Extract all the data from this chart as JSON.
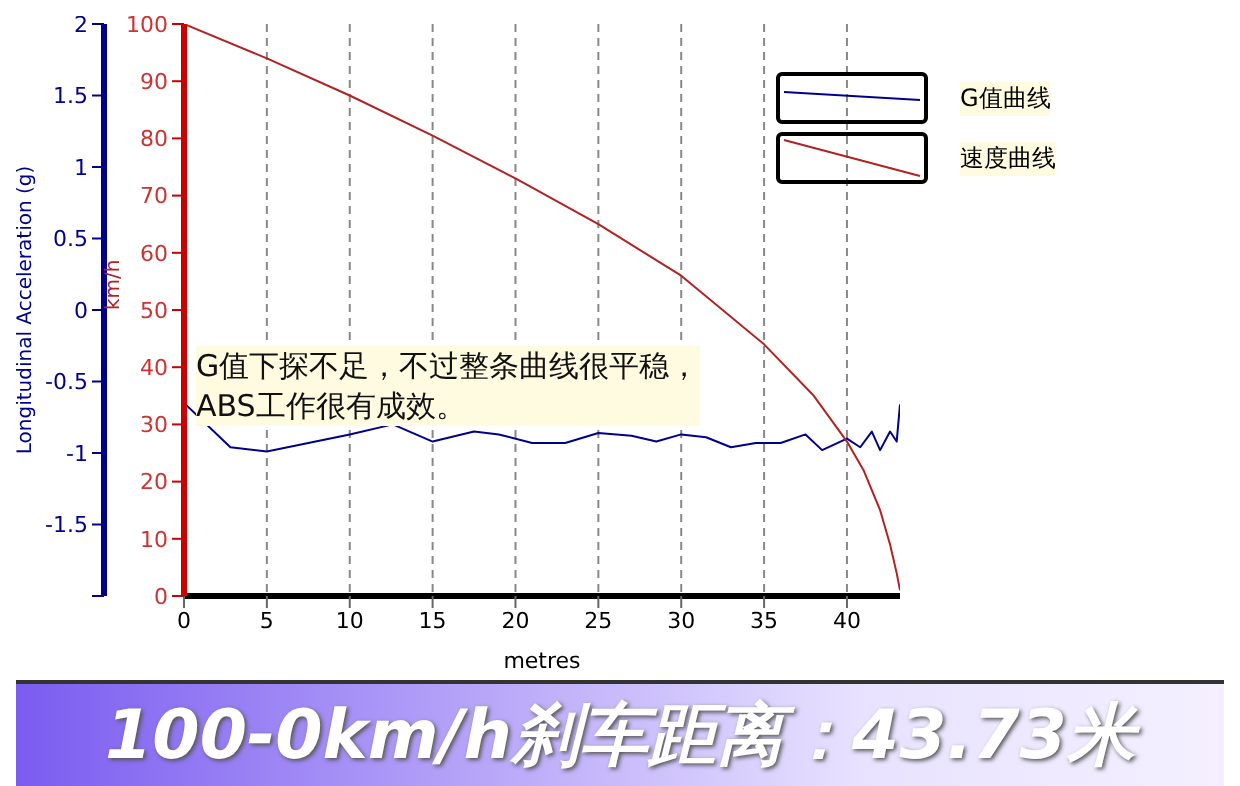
{
  "chart_data": {
    "type": "line",
    "title": "100-0km/h刹车距离：43.73米",
    "xlabel": "metres",
    "ylabel": "km/h",
    "y2label": "Longitudinal Acceleration (g)",
    "annotations": [
      "G值下探不足，不过整条曲线很平稳，\nABS工作很有成效。"
    ],
    "series": [
      {
        "name": "G值曲线",
        "color": "#00008b",
        "axis": "y2",
        "x": [
          0,
          2.8,
          5,
          10,
          12.6,
          15,
          17.5,
          19,
          21,
          23,
          25,
          27,
          28.5,
          30,
          31.5,
          33,
          34.5,
          36,
          37.5,
          38.5,
          40,
          40.8,
          41.5,
          42,
          42.6,
          43,
          43.2
        ],
        "values": [
          -0.65,
          -0.96,
          -0.99,
          -0.87,
          -0.8,
          -0.92,
          -0.85,
          -0.87,
          -0.93,
          -0.93,
          -0.86,
          -0.88,
          -0.92,
          -0.87,
          -0.89,
          -0.96,
          -0.93,
          -0.93,
          -0.87,
          -0.98,
          -0.9,
          -0.96,
          -0.85,
          -0.98,
          -0.85,
          -0.92,
          -0.66
        ]
      },
      {
        "name": "速度曲线",
        "color": "#b22222",
        "x": [
          0,
          5,
          10,
          15,
          20,
          25,
          30,
          35,
          38,
          40,
          41,
          42,
          42.6,
          43,
          43.2
        ],
        "values": [
          100,
          94,
          87.5,
          80.5,
          73,
          65,
          56,
          44,
          35,
          27,
          22,
          15,
          9,
          4,
          1
        ]
      }
    ],
    "xlim": [
      0,
      43.2
    ],
    "xticks": [
      0,
      5,
      10,
      15,
      20,
      25,
      30,
      35,
      40
    ],
    "ylim": [
      0,
      100
    ],
    "yticks": [
      0,
      10,
      20,
      30,
      40,
      50,
      60,
      70,
      80,
      90,
      100
    ],
    "y2lim": [
      -2,
      2
    ],
    "y2ticks": [
      {
        "value": -2,
        "label": null
      },
      -1.5,
      -1,
      -0.5,
      0,
      0.5,
      1,
      1.5,
      2
    ],
    "grid": true,
    "line_style": "solid",
    "marker": "none",
    "legend": "top right"
  }
}
